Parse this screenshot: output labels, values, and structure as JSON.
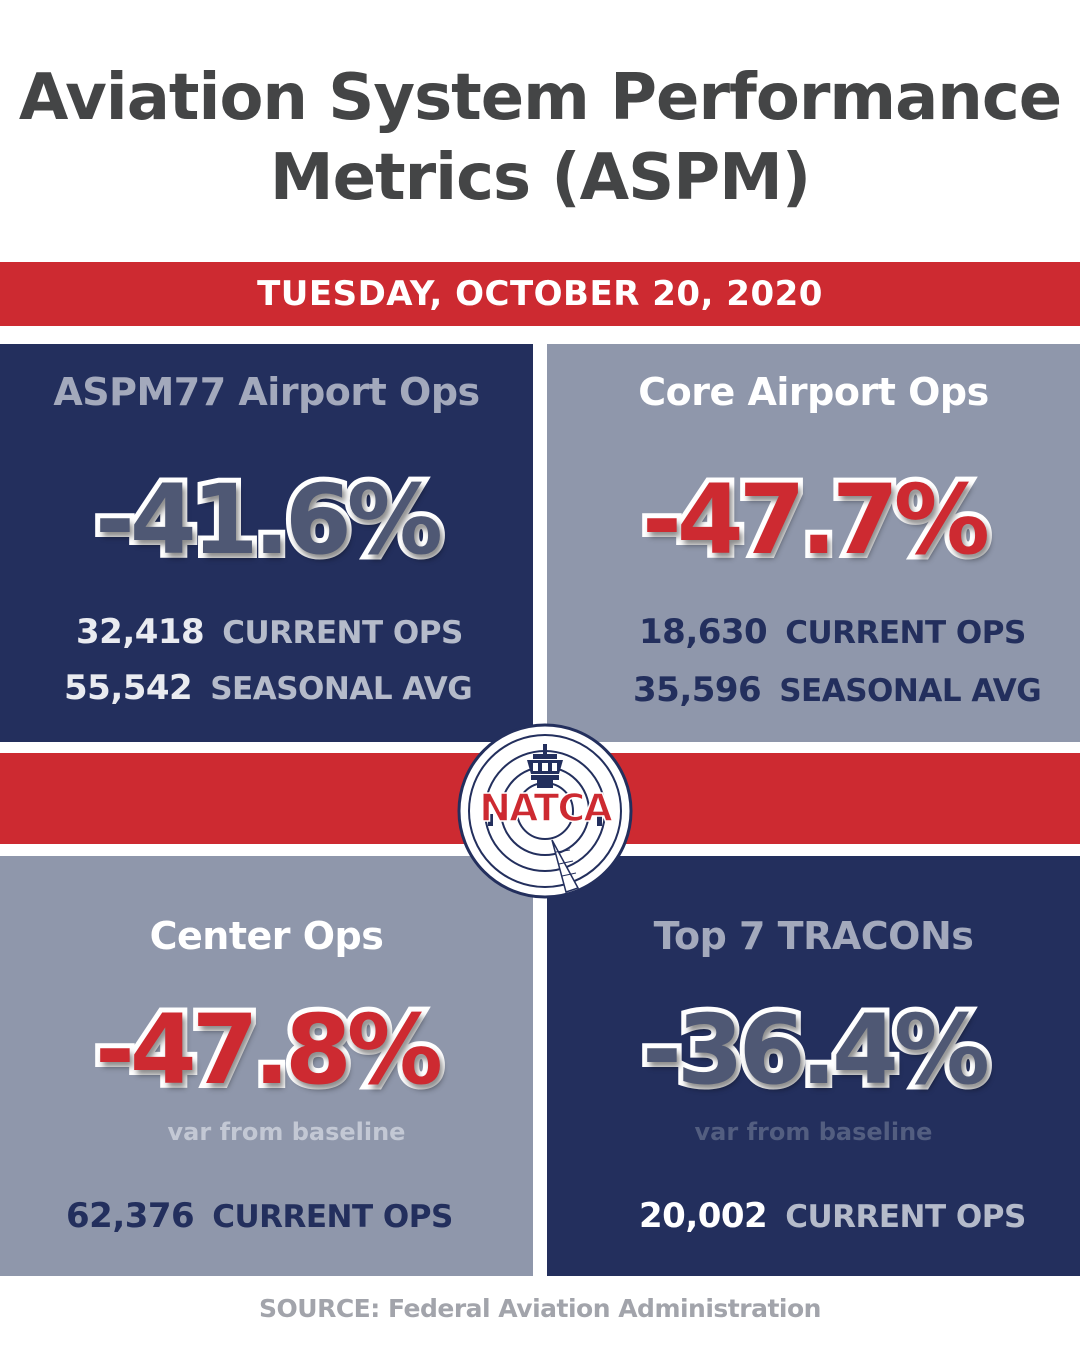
{
  "title": {
    "line1": "Aviation System Performance",
    "line2": "Metrics (ASPM)"
  },
  "date": "TUESDAY, OCTOBER 20, 2020",
  "panels": [
    {
      "title": "ASPM77 Airport Ops",
      "value": "-41.6%",
      "stats": [
        {
          "number": "32,418",
          "label": "CURRENT OPS"
        },
        {
          "number": "55,542",
          "label": "SEASONAL AVG"
        }
      ]
    },
    {
      "title": "Core Airport Ops",
      "value": "-47.7%",
      "stats": [
        {
          "number": "18,630",
          "label": "CURRENT OPS"
        },
        {
          "number": "35,596",
          "label": "SEASONAL AVG"
        }
      ]
    },
    {
      "title": "Center Ops",
      "value": "-47.8%",
      "note": "var from baseline",
      "stats": [
        {
          "number": "62,376",
          "label": "CURRENT OPS"
        }
      ]
    },
    {
      "title": "Top 7 TRACONs",
      "value": "-36.4%",
      "note": "var from baseline",
      "stats": [
        {
          "number": "20,002",
          "label": "CURRENT OPS"
        }
      ]
    }
  ],
  "logo": {
    "text": "NATCA",
    "icon": "control-tower-icon"
  },
  "source": "SOURCE: Federal Aviation Administration",
  "colors": {
    "red": "#cd2a31",
    "navy": "#232f5d",
    "slate": "#8f97ab",
    "title_gray": "#444546"
  }
}
